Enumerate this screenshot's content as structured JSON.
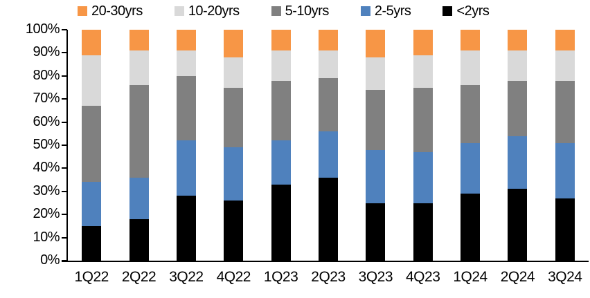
{
  "chart_data": {
    "type": "bar",
    "stacked": true,
    "stacked_100_percent": true,
    "title": "",
    "xlabel": "",
    "ylabel": "",
    "ylim": [
      0,
      100
    ],
    "ytick_step": 10,
    "yticks": [
      "0%",
      "10%",
      "20%",
      "30%",
      "40%",
      "50%",
      "60%",
      "70%",
      "80%",
      "90%",
      "100%"
    ],
    "grid": false,
    "legend_position": "top",
    "categories": [
      "1Q22",
      "2Q22",
      "3Q22",
      "4Q22",
      "1Q23",
      "2Q23",
      "3Q23",
      "4Q23",
      "1Q24",
      "2Q24",
      "3Q24"
    ],
    "series": [
      {
        "name": "<2yrs",
        "color": "#000000",
        "values": [
          15,
          18,
          28,
          26,
          33,
          36,
          25,
          25,
          29,
          31,
          27
        ]
      },
      {
        "name": "2-5yrs",
        "color": "#4F81BD",
        "values": [
          19,
          18,
          24,
          23,
          19,
          20,
          23,
          22,
          22,
          23,
          24
        ]
      },
      {
        "name": "5-10yrs",
        "color": "#808080",
        "values": [
          33,
          40,
          28,
          26,
          26,
          23,
          26,
          28,
          25,
          24,
          27
        ]
      },
      {
        "name": "10-20yrs",
        "color": "#D9D9D9",
        "values": [
          22,
          15,
          11,
          13,
          13,
          12,
          14,
          14,
          15,
          13,
          13
        ]
      },
      {
        "name": "20-30yrs",
        "color": "#F79646",
        "values": [
          11,
          9,
          9,
          12,
          9,
          9,
          12,
          11,
          9,
          9,
          9
        ]
      }
    ],
    "legend_order": [
      "20-30yrs",
      "10-20yrs",
      "5-10yrs",
      "2-5yrs",
      "<2yrs"
    ]
  },
  "axis": {
    "color": "#000000"
  }
}
